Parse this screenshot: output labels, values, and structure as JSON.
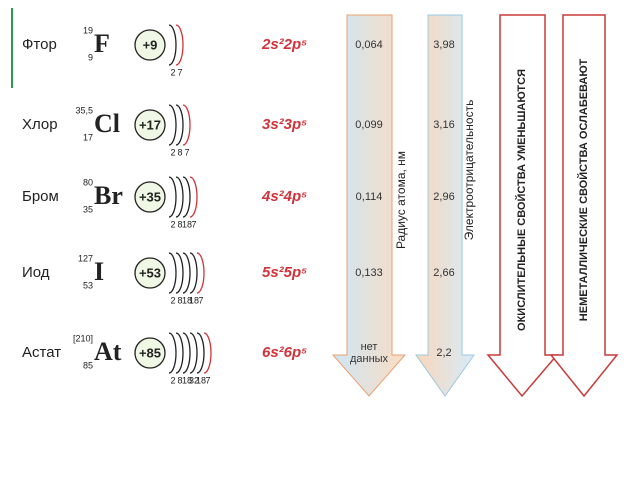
{
  "elements": [
    {
      "name": "Фтор",
      "mass": "19",
      "number": "9",
      "symbol": "F",
      "charge": "+9",
      "shells": [
        "2",
        "7"
      ],
      "config": "2s²2p⁵",
      "radius": "0,064",
      "electronegativity": "3,98"
    },
    {
      "name": "Хлор",
      "mass": "35,5",
      "number": "17",
      "symbol": "Cl",
      "charge": "+17",
      "shells": [
        "2",
        "8",
        "7"
      ],
      "config": "3s²3p⁵",
      "radius": "0,099",
      "electronegativity": "3,16"
    },
    {
      "name": "Бром",
      "mass": "80",
      "number": "35",
      "symbol": "Br",
      "charge": "+35",
      "shells": [
        "2",
        "8",
        "18",
        "7"
      ],
      "config": "4s²4p⁵",
      "radius": "0,114",
      "electronegativity": "2,96"
    },
    {
      "name": "Иод",
      "mass": "127",
      "number": "53",
      "symbol": "I",
      "charge": "+53",
      "shells": [
        "2",
        "8",
        "18",
        "18",
        "7"
      ],
      "config": "5s²5p⁵",
      "radius": "0,133",
      "electronegativity": "2,66"
    },
    {
      "name": "Астат",
      "mass": "[210]",
      "number": "85",
      "symbol": "At",
      "charge": "+85",
      "shells": [
        "2",
        "8",
        "18",
        "32",
        "18",
        "7"
      ],
      "config": "6s²6p⁵",
      "radius": "нет данных",
      "electronegativity": "2,2"
    }
  ],
  "arrows": {
    "radius": "Радиус атома, нм",
    "electronegativity": "Электроотрицательность",
    "oxidizing": "ОКИСЛИТЕЛЬНЫЕ СВОЙСТВА УМЕНЬШАЮТСЯ",
    "nonmetallic": "НЕМЕТАЛЛИЧЕСКИЕ СВОЙСТВА ОСЛАБЕВАЮТ"
  }
}
